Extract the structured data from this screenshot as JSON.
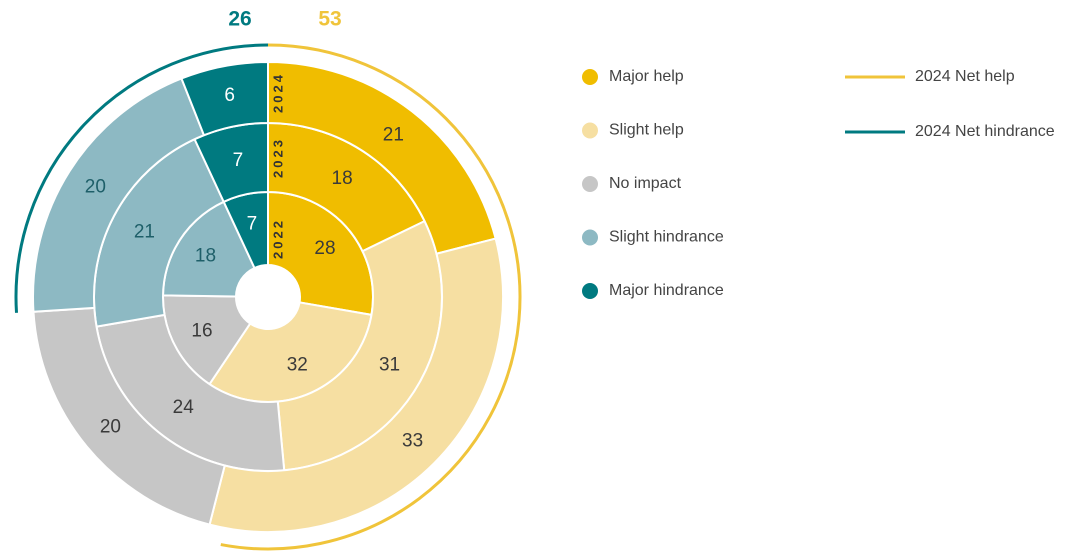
{
  "chart_data": {
    "type": "donut",
    "categories": [
      "Major help",
      "Slight help",
      "No impact",
      "Slight hindrance",
      "Major hindrance"
    ],
    "colors": [
      "#f0bd00",
      "#f6dfa2",
      "#c6c6c6",
      "#8db9c3",
      "#007a80"
    ],
    "label_colors": [
      "#3a3a3a",
      "#3a3a3a",
      "#3a3a3a",
      "#1e5f69",
      "#ffffff"
    ],
    "series": [
      {
        "name": "2022",
        "values": [
          28,
          32,
          16,
          18,
          7
        ]
      },
      {
        "name": "2023",
        "values": [
          18,
          31,
          24,
          21,
          7
        ]
      },
      {
        "name": "2024",
        "values": [
          21,
          33,
          20,
          20,
          6
        ]
      }
    ],
    "net_arcs": [
      {
        "name": "2024 Net help",
        "value": 53,
        "color": "#f0c43a",
        "direction": "clockwise"
      },
      {
        "name": "2024 Net hindrance",
        "value": 26,
        "color": "#007a80",
        "direction": "counterclockwise"
      }
    ]
  }
}
